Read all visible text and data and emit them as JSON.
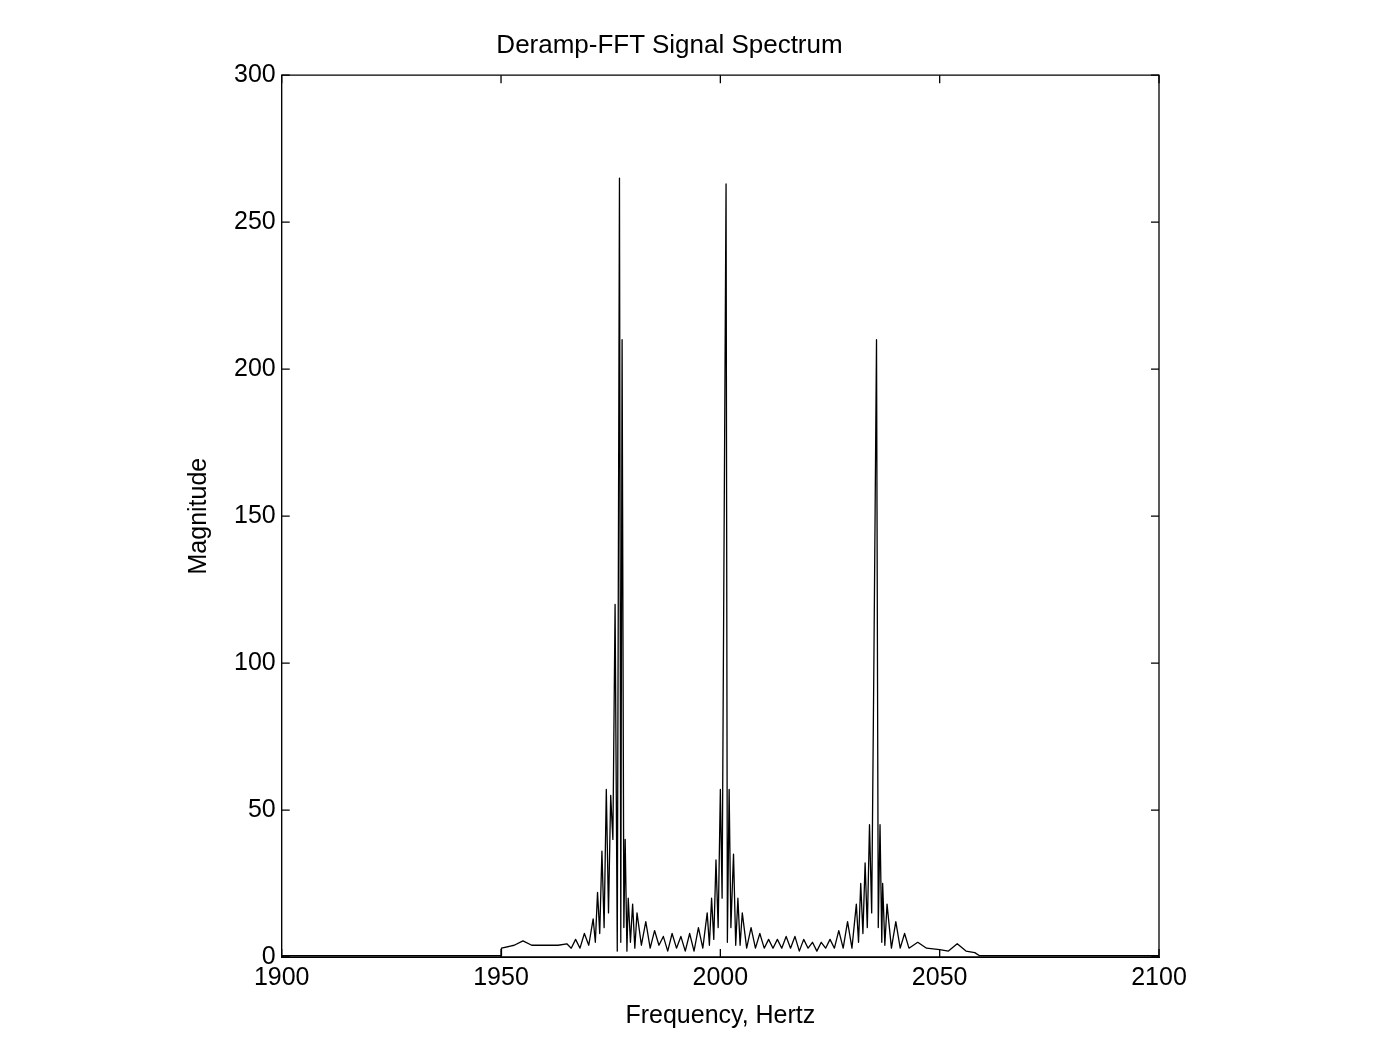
{
  "chart_data": {
    "type": "line",
    "title": "Deramp-FFT Signal Spectrum",
    "xlabel": "Frequency, Hertz",
    "ylabel": "Magnitude",
    "xlim": [
      1900,
      2100
    ],
    "xticks": [
      1900,
      1950,
      2000,
      2050,
      2100
    ],
    "ylim": [
      0,
      300
    ],
    "yticks": [
      0,
      50,
      100,
      150,
      200,
      250,
      300
    ],
    "grid": false,
    "legend": false,
    "marker": "none",
    "line_style": "solid",
    "series": [
      {
        "color": "#000000",
        "x": [
          1900,
          1950,
          1950.1,
          1953,
          1955,
          1957,
          1960,
          1963,
          1965,
          1966,
          1967,
          1968,
          1969,
          1970,
          1971,
          1971.5,
          1972,
          1972.5,
          1973,
          1973.5,
          1974,
          1974.5,
          1975,
          1975.5,
          1976,
          1976.5,
          1977,
          1977.3,
          1977.6,
          1978,
          1978.3,
          1978.7,
          1979,
          1979.5,
          1980,
          1980.5,
          1981,
          1982,
          1983,
          1984,
          1985,
          1986,
          1987,
          1988,
          1989,
          1990,
          1991,
          1992,
          1993,
          1994,
          1995,
          1996,
          1997,
          1997.5,
          1998,
          1998.5,
          1999,
          1999.5,
          2000,
          2000.4,
          2000.8,
          2001.3,
          2001.6,
          2002,
          2002.4,
          2003,
          2003.5,
          2004,
          2004.5,
          2005,
          2006,
          2007,
          2008,
          2009,
          2010,
          2011,
          2012,
          2013,
          2014,
          2015,
          2016,
          2017,
          2018,
          2019,
          2020,
          2021,
          2022,
          2023,
          2024,
          2025,
          2026,
          2027,
          2028,
          2029,
          2030,
          2031,
          2031.5,
          2032,
          2032.5,
          2033,
          2033.5,
          2034,
          2034.5,
          2035,
          2035.6,
          2036,
          2036.4,
          2036.8,
          2037,
          2037.5,
          2038,
          2039,
          2040,
          2041,
          2042,
          2043,
          2045,
          2047,
          2050,
          2052,
          2054,
          2056,
          2058,
          2059,
          2100
        ],
        "values": [
          0.5,
          0.5,
          3,
          4,
          5.5,
          4,
          4,
          4,
          4.5,
          3,
          6,
          3,
          8,
          4,
          13,
          5,
          22,
          8,
          36,
          10,
          57,
          15,
          55,
          40,
          120,
          2,
          265,
          5,
          210,
          10,
          40,
          2,
          20,
          5,
          18,
          3,
          15,
          4,
          12,
          3,
          9,
          4,
          7,
          2,
          8,
          3,
          7,
          2,
          8,
          2,
          10,
          3,
          15,
          4,
          20,
          6,
          33,
          10,
          57,
          20,
          130,
          263,
          5,
          57,
          10,
          35,
          4,
          20,
          4,
          15,
          3,
          10,
          3,
          8,
          3,
          6,
          3,
          6,
          3,
          7,
          3,
          7,
          2,
          6,
          3,
          5,
          2,
          5,
          3,
          6,
          3,
          9,
          3,
          12,
          3,
          18,
          5,
          25,
          8,
          32,
          10,
          45,
          15,
          100,
          210,
          10,
          45,
          5,
          25,
          4,
          18,
          3,
          12,
          3,
          8,
          3,
          5,
          3,
          2.5,
          2,
          4.5,
          2,
          1.5,
          0.5,
          0.5
        ]
      }
    ]
  }
}
